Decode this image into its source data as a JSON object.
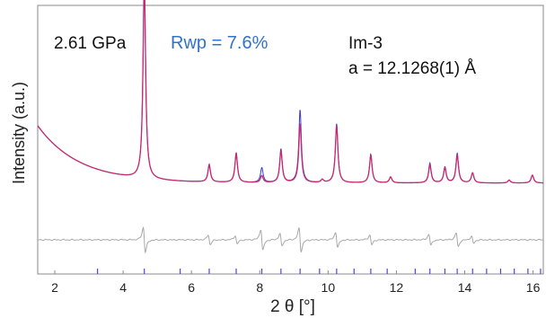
{
  "chart_data": {
    "type": "line",
    "xlabel": "2 θ  [°]",
    "ylabel": "Intensity  (a.u.)",
    "xlim": [
      1.5,
      16.3
    ],
    "xticks": [
      2,
      4,
      6,
      8,
      10,
      12,
      14,
      16
    ],
    "annotations": {
      "pressure": "2.61 GPa",
      "rwp": "Rwp = 7.6%",
      "space_group": "Im-3",
      "lattice": "a = 12.1268(1) Å"
    },
    "colors": {
      "observed": "#3a3ad8",
      "calculated": "#c8286e",
      "difference": "#a8a8a8",
      "rwp_text": "#2f73c9",
      "reflection_marks": "#4a4ae0"
    },
    "background": {
      "start": 0.4,
      "decay": 0.82,
      "floor": 0.11
    },
    "peaks": [
      {
        "x": 4.62,
        "obs": 1.0,
        "calc": 1.0
      },
      {
        "x": 6.52,
        "obs": 0.09,
        "calc": 0.085
      },
      {
        "x": 7.31,
        "obs": 0.15,
        "calc": 0.145
      },
      {
        "x": 8.06,
        "obs": 0.075,
        "calc": 0.035
      },
      {
        "x": 8.62,
        "obs": 0.17,
        "calc": 0.16
      },
      {
        "x": 9.18,
        "obs": 0.37,
        "calc": 0.3
      },
      {
        "x": 9.83,
        "obs": 0.015,
        "calc": 0.015
      },
      {
        "x": 10.25,
        "obs": 0.3,
        "calc": 0.29
      },
      {
        "x": 11.25,
        "obs": 0.145,
        "calc": 0.14
      },
      {
        "x": 11.83,
        "obs": 0.03,
        "calc": 0.03
      },
      {
        "x": 12.98,
        "obs": 0.1,
        "calc": 0.09
      },
      {
        "x": 13.42,
        "obs": 0.08,
        "calc": 0.075
      },
      {
        "x": 13.78,
        "obs": 0.15,
        "calc": 0.14
      },
      {
        "x": 14.23,
        "obs": 0.05,
        "calc": 0.05
      },
      {
        "x": 15.3,
        "obs": 0.015,
        "calc": 0.015
      },
      {
        "x": 15.98,
        "obs": 0.04,
        "calc": 0.04
      }
    ],
    "difference_features": [
      {
        "x": 4.62,
        "amp": 0.9
      },
      {
        "x": 6.52,
        "amp": 0.35
      },
      {
        "x": 7.31,
        "amp": 0.3
      },
      {
        "x": 8.06,
        "amp": 0.75
      },
      {
        "x": 8.62,
        "amp": 0.45
      },
      {
        "x": 9.18,
        "amp": 0.85
      },
      {
        "x": 10.25,
        "amp": 0.55
      },
      {
        "x": 11.25,
        "amp": 0.35
      },
      {
        "x": 12.98,
        "amp": 0.4
      },
      {
        "x": 13.78,
        "amp": 0.5
      },
      {
        "x": 14.23,
        "amp": 0.25
      }
    ],
    "reflections": [
      3.25,
      4.62,
      5.67,
      6.52,
      7.31,
      8.06,
      8.62,
      9.18,
      9.75,
      10.25,
      10.76,
      11.25,
      11.73,
      12.55,
      12.98,
      13.42,
      13.78,
      14.23,
      14.64,
      15.05,
      15.45,
      15.85,
      16.22
    ]
  }
}
